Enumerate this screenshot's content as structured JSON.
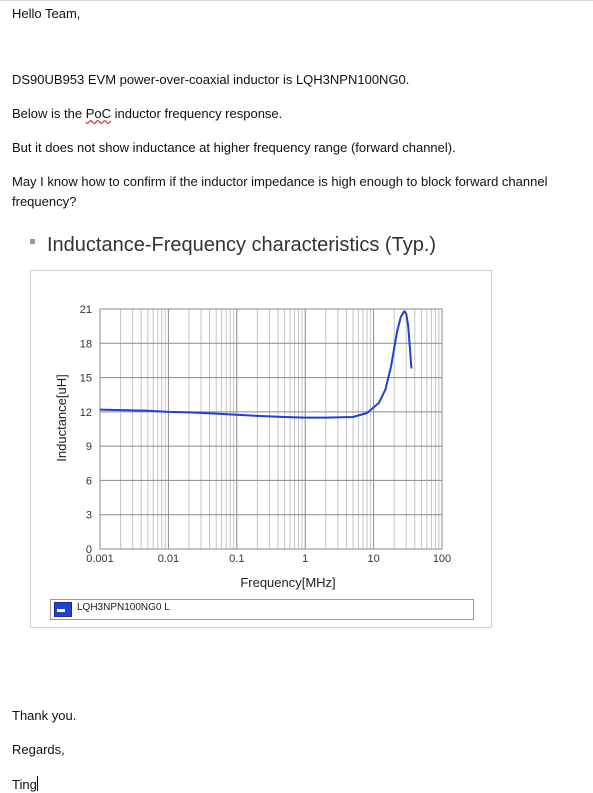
{
  "email": {
    "greeting": "Hello Team,",
    "line1": "DS90UB953 EVM power-over-coaxial inductor is LQH3NPN100NG0.",
    "line2_before": "Below is the ",
    "line2_poc": "PoC",
    "line2_after": " inductor frequency response.",
    "line3": "But it does not show inductance at higher frequency range (forward channel).",
    "line4": "May I know how to confirm if the inductor impedance is high enough to block forward channel frequency?",
    "thanks": "Thank you.",
    "regards": "Regards,",
    "signature": "Ting"
  },
  "section_title": "Inductance-Frequency characteristics (Typ.)",
  "chart_data": {
    "type": "line",
    "title": "",
    "xlabel": "Frequency[MHz]",
    "ylabel": "Inductance[uH]",
    "x_scale": "log",
    "xlim": [
      0.001,
      100
    ],
    "ylim": [
      0,
      21
    ],
    "x_ticks": [
      0.001,
      0.01,
      0.1,
      1,
      10,
      100
    ],
    "x_tick_labels": [
      "0.001",
      "0.01",
      "0.1",
      "1",
      "10",
      "100"
    ],
    "y_ticks": [
      0,
      3,
      6,
      9,
      12,
      15,
      18,
      21
    ],
    "y_tick_labels": [
      "0",
      "3",
      "6",
      "9",
      "12",
      "15",
      "18",
      "21"
    ],
    "grid": true,
    "legend_position": "bottom",
    "series": [
      {
        "name": "LQH3NPN100NG0 L",
        "color": "#1f3fd6",
        "x": [
          0.001,
          0.002,
          0.005,
          0.01,
          0.02,
          0.05,
          0.1,
          0.2,
          0.5,
          1,
          2,
          5,
          8,
          12,
          15,
          18,
          22,
          25,
          28,
          30,
          32,
          33,
          34,
          35,
          35.5,
          36
        ],
        "y": [
          12.2,
          12.15,
          12.1,
          12.0,
          11.95,
          11.85,
          11.75,
          11.65,
          11.55,
          11.5,
          11.5,
          11.55,
          11.9,
          12.8,
          14.0,
          16.0,
          19.0,
          20.3,
          20.8,
          20.6,
          19.5,
          18.5,
          17.5,
          16.5,
          16.0,
          15.8
        ]
      }
    ]
  }
}
